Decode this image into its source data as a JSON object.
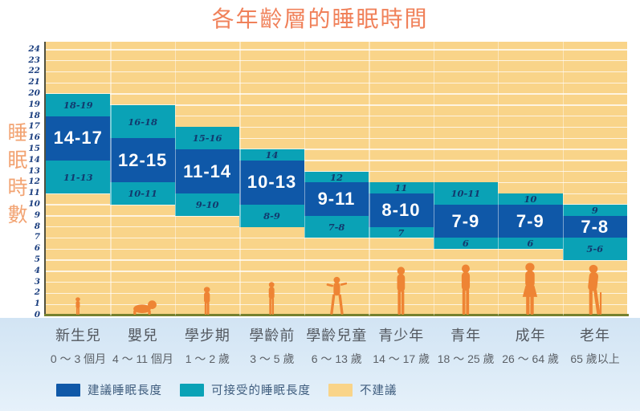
{
  "title": "各年齡層的睡眠時間",
  "y_axis": {
    "label": "睡眠時數"
  },
  "legend": [
    {
      "key": "recommended",
      "label": "建議睡眠長度",
      "color": "#0f58a8"
    },
    {
      "key": "acceptable",
      "label": "可接受的睡眠長度",
      "color": "#0aa2b6"
    },
    {
      "key": "not-recommended",
      "label": "不建議",
      "color": "#f9d489"
    }
  ],
  "colors": {
    "plot_background": "#f9d489",
    "recommended": "#0f58a8",
    "acceptable": "#0aa2b6",
    "figure": "#ee8434",
    "title": "#f0815a",
    "axis_title": "#f2a372",
    "baseline": "#76812f"
  },
  "chart_data": {
    "type": "range-band-column",
    "title": "各年齡層的睡眠時間",
    "ylabel": "睡眠時數",
    "unit": "hours",
    "ylim": [
      0,
      25
    ],
    "y_ticks": [
      0,
      1,
      2,
      3,
      4,
      5,
      6,
      7,
      8,
      9,
      10,
      11,
      12,
      13,
      14,
      15,
      16,
      17,
      18,
      19,
      20,
      21,
      22,
      23,
      24
    ],
    "grid": true,
    "legend_position": "bottom-left",
    "categories": [
      {
        "name": "新生兒",
        "age": "0 ～ 3 個月",
        "figure": "baby",
        "acceptable_upper": {
          "label": "18-19",
          "from": 18,
          "to": 20
        },
        "recommended": {
          "label": "14-17",
          "from": 14,
          "to": 18
        },
        "acceptable_lower": {
          "label": "11-13",
          "from": 11,
          "to": 14
        }
      },
      {
        "name": "嬰兒",
        "age": "4 ～ 11 個月",
        "figure": "crawling-infant",
        "acceptable_upper": {
          "label": "16-18",
          "from": 16,
          "to": 19
        },
        "recommended": {
          "label": "12-15",
          "from": 12,
          "to": 16
        },
        "acceptable_lower": {
          "label": "10-11",
          "from": 10,
          "to": 12
        }
      },
      {
        "name": "學步期",
        "age": "1 ～ 2 歲",
        "figure": "toddler",
        "acceptable_upper": {
          "label": "15-16",
          "from": 15,
          "to": 17
        },
        "recommended": {
          "label": "11-14",
          "from": 11,
          "to": 15
        },
        "acceptable_lower": {
          "label": "9-10",
          "from": 9,
          "to": 11
        }
      },
      {
        "name": "學齡前",
        "age": "3 ～ 5 歲",
        "figure": "child",
        "acceptable_upper": {
          "label": "14",
          "from": 14,
          "to": 15
        },
        "recommended": {
          "label": "10-13",
          "from": 10,
          "to": 14
        },
        "acceptable_lower": {
          "label": "8-9",
          "from": 8,
          "to": 10
        }
      },
      {
        "name": "學齡兒童",
        "age": "6 ～ 13 歲",
        "figure": "playing-child",
        "acceptable_upper": {
          "label": "12",
          "from": 12,
          "to": 13
        },
        "recommended": {
          "label": "9-11",
          "from": 9,
          "to": 12
        },
        "acceptable_lower": {
          "label": "7-8",
          "from": 7,
          "to": 9
        }
      },
      {
        "name": "青少年",
        "age": "14 ～ 17 歲",
        "figure": "teenager",
        "acceptable_upper": {
          "label": "11",
          "from": 11,
          "to": 12
        },
        "recommended": {
          "label": "8-10",
          "from": 8,
          "to": 11
        },
        "acceptable_lower": {
          "label": "7",
          "from": 7,
          "to": 8
        }
      },
      {
        "name": "青年",
        "age": "18 ～ 25 歲",
        "figure": "young-adult",
        "acceptable_upper": {
          "label": "10-11",
          "from": 10,
          "to": 12
        },
        "recommended": {
          "label": "7-9",
          "from": 7,
          "to": 10
        },
        "acceptable_lower": {
          "label": "6",
          "from": 6,
          "to": 7
        }
      },
      {
        "name": "成年",
        "age": "26 ～ 64 歲",
        "figure": "adult-woman",
        "acceptable_upper": {
          "label": "10",
          "from": 10,
          "to": 11
        },
        "recommended": {
          "label": "7-9",
          "from": 7,
          "to": 10
        },
        "acceptable_lower": {
          "label": "6",
          "from": 6,
          "to": 7
        }
      },
      {
        "name": "老年",
        "age": "65 歲以上",
        "figure": "elderly-with-cane",
        "acceptable_upper": {
          "label": "9",
          "from": 9,
          "to": 10
        },
        "recommended": {
          "label": "7-8",
          "from": 7,
          "to": 9
        },
        "acceptable_lower": {
          "label": "5-6",
          "from": 5,
          "to": 7
        }
      }
    ]
  }
}
